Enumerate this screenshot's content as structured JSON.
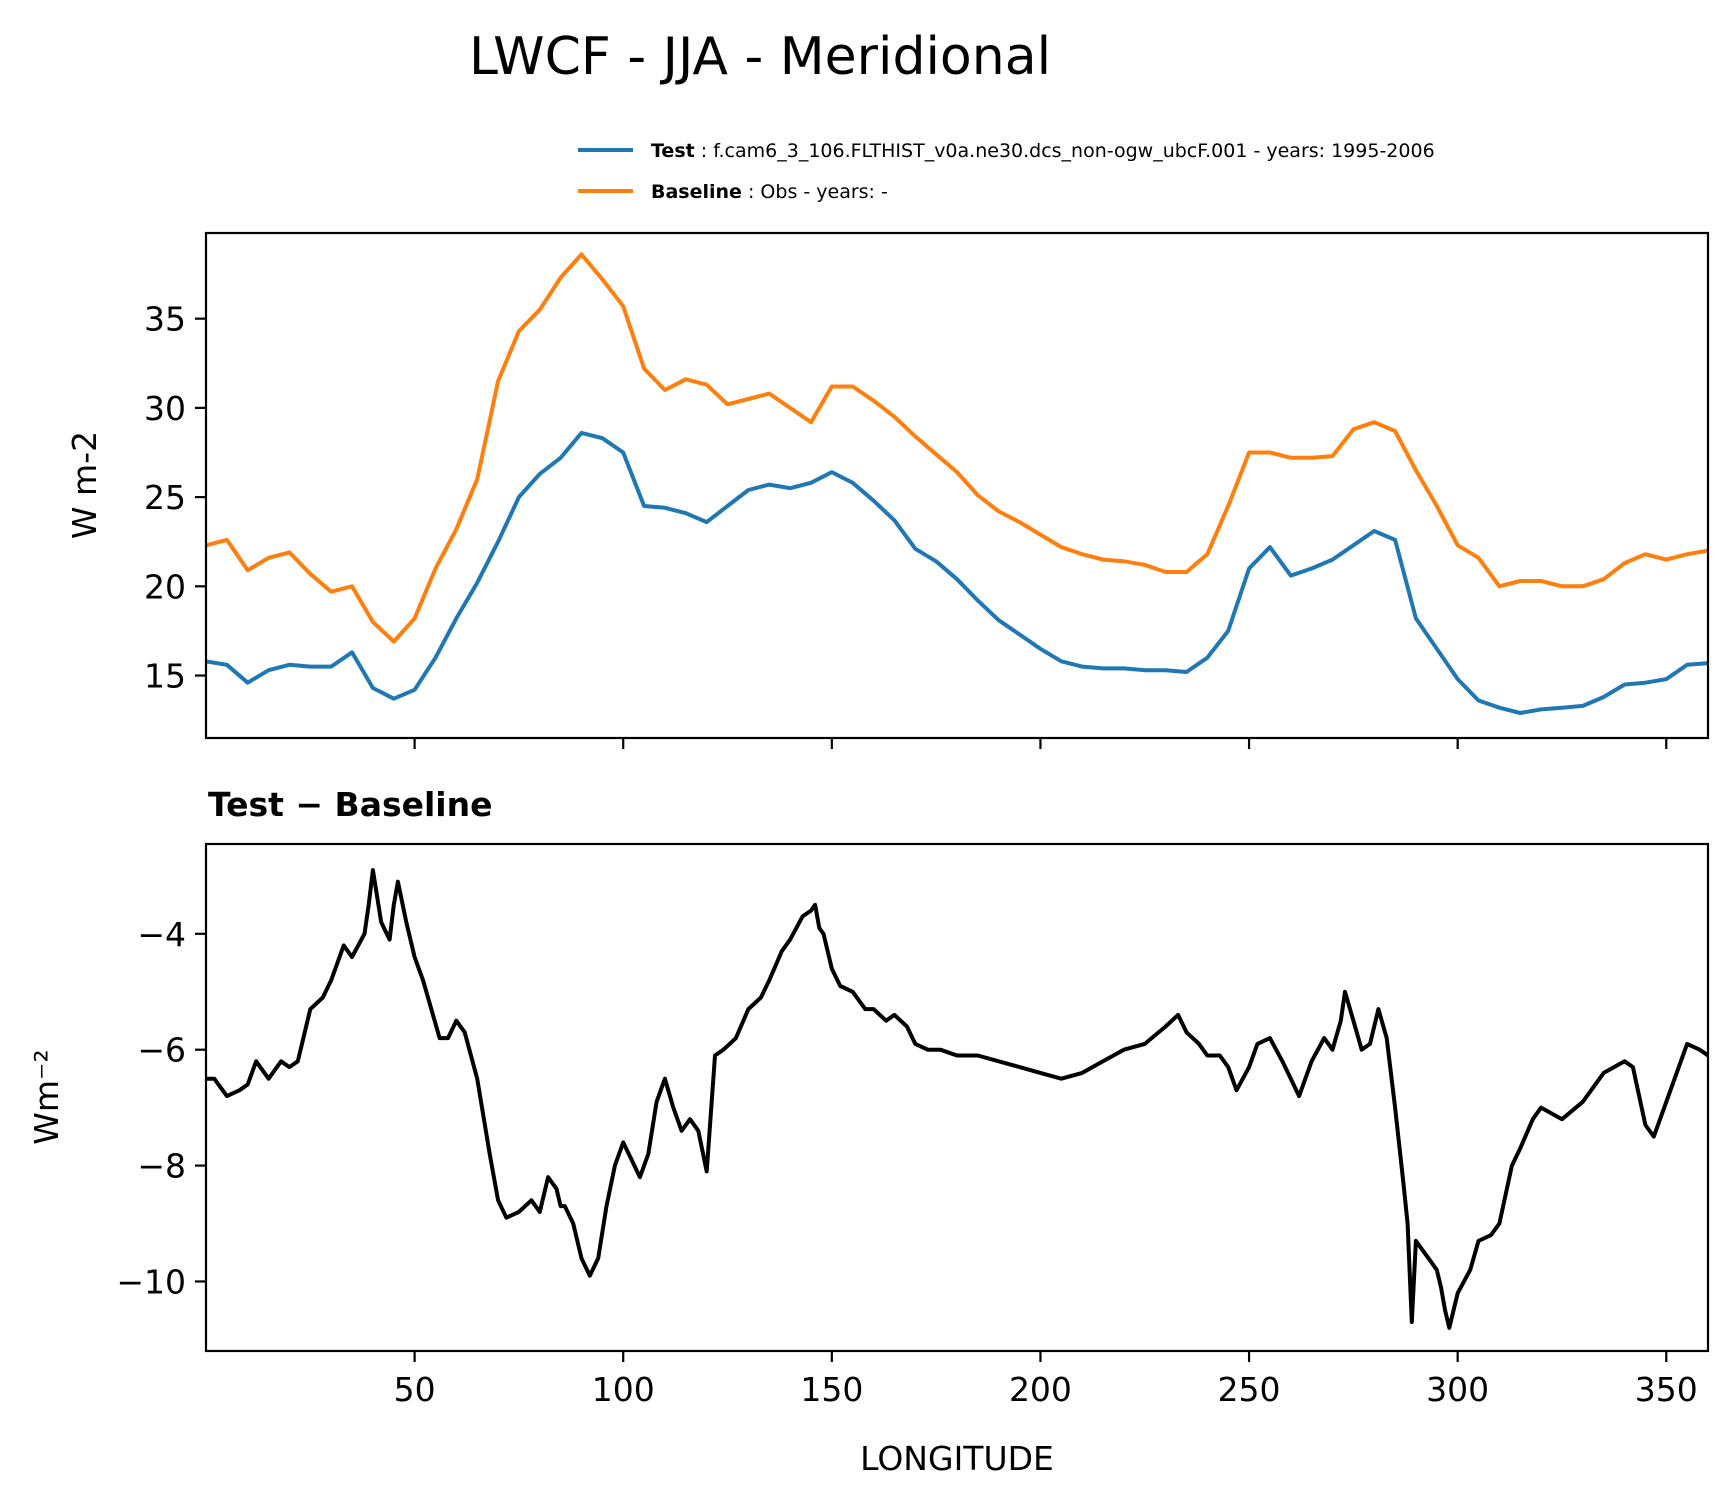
{
  "colors": {
    "test": "#1f77b4",
    "baseline": "#ff7f0e",
    "difference": "#000000"
  },
  "chart_data": [
    {
      "type": "line",
      "title": "LWCF - JJA - Meridional",
      "xlabel": "",
      "ylabel": "W m-2",
      "xlim": [
        0,
        360
      ],
      "ylim": [
        11.5,
        39.8
      ],
      "yticks": [
        15,
        20,
        25,
        30,
        35
      ],
      "ytick_labels": [
        "15",
        "20",
        "25",
        "30",
        "35"
      ],
      "xticks": [
        50,
        100,
        150,
        200,
        250,
        300,
        350
      ],
      "legend": [
        {
          "name": "Test",
          "text": ": f.cam6_3_106.FLTHIST_v0a.ne30.dcs_non-ogw_ubcF.001 - years: 1995-2006"
        },
        {
          "name": "Baseline",
          "text": ": Obs - years: -"
        }
      ],
      "legend_position": "above-right",
      "x": [
        0,
        5,
        10,
        15,
        20,
        25,
        30,
        35,
        40,
        45,
        50,
        55,
        60,
        65,
        70,
        75,
        80,
        85,
        90,
        95,
        100,
        105,
        110,
        115,
        120,
        125,
        130,
        135,
        140,
        145,
        150,
        155,
        160,
        165,
        170,
        175,
        180,
        185,
        190,
        195,
        200,
        205,
        210,
        215,
        220,
        225,
        230,
        235,
        240,
        245,
        250,
        255,
        260,
        265,
        270,
        275,
        280,
        285,
        290,
        295,
        300,
        305,
        310,
        315,
        320,
        325,
        330,
        335,
        340,
        345,
        350,
        355,
        360
      ],
      "series": [
        {
          "name": "Test",
          "values": [
            15.8,
            15.6,
            14.6,
            15.3,
            15.6,
            15.5,
            15.5,
            16.3,
            14.3,
            13.7,
            14.2,
            16.0,
            18.2,
            20.2,
            22.5,
            25.0,
            26.3,
            27.2,
            28.6,
            28.3,
            27.5,
            24.5,
            24.4,
            24.1,
            23.6,
            24.5,
            25.4,
            25.7,
            25.5,
            25.8,
            26.4,
            25.8,
            24.8,
            23.7,
            22.1,
            21.4,
            20.4,
            19.2,
            18.1,
            17.3,
            16.5,
            15.8,
            15.5,
            15.4,
            15.4,
            15.3,
            15.3,
            15.2,
            16.0,
            17.5,
            21.0,
            22.2,
            20.6,
            21.0,
            21.5,
            22.3,
            23.1,
            22.6,
            18.2,
            16.5,
            14.8,
            13.6,
            13.2,
            12.9,
            13.1,
            13.2,
            13.3,
            13.8,
            14.5,
            14.6,
            14.8,
            15.6,
            15.7
          ]
        },
        {
          "name": "Baseline",
          "values": [
            22.3,
            22.6,
            20.9,
            21.6,
            21.9,
            20.7,
            19.7,
            20.0,
            18.0,
            16.9,
            18.2,
            21.0,
            23.2,
            26.0,
            31.5,
            34.3,
            35.5,
            37.3,
            38.6,
            37.2,
            35.7,
            32.2,
            31.0,
            31.6,
            31.3,
            30.2,
            30.5,
            30.8,
            30.0,
            29.2,
            31.2,
            31.2,
            30.4,
            29.5,
            28.4,
            27.4,
            26.4,
            25.1,
            24.2,
            23.6,
            22.9,
            22.2,
            21.8,
            21.5,
            21.4,
            21.2,
            20.8,
            20.8,
            21.8,
            24.5,
            27.5,
            27.5,
            27.2,
            27.2,
            27.3,
            28.8,
            29.2,
            28.7,
            26.5,
            24.5,
            22.3,
            21.6,
            20.0,
            20.3,
            20.3,
            20.0,
            20.0,
            20.4,
            21.3,
            21.8,
            21.5,
            21.8,
            22.0
          ]
        }
      ]
    },
    {
      "type": "line",
      "title": "Test − Baseline",
      "xlabel": "LONGITUDE",
      "ylabel": "Wm⁻²",
      "xlim": [
        0,
        360
      ],
      "ylim": [
        -11.2,
        -2.45
      ],
      "yticks": [
        -10,
        -8,
        -6,
        -4
      ],
      "ytick_labels": [
        "−10",
        "−8",
        "−6",
        "−4"
      ],
      "xticks": [
        50,
        100,
        150,
        200,
        250,
        300,
        350
      ],
      "xtick_labels": [
        "50",
        "100",
        "150",
        "200",
        "250",
        "300",
        "350"
      ],
      "x": [
        0,
        2,
        5,
        8,
        10,
        12,
        15,
        18,
        20,
        22,
        25,
        28,
        30,
        33,
        35,
        38,
        39,
        40,
        42,
        44,
        45,
        46,
        48,
        50,
        52,
        54,
        56,
        58,
        60,
        62,
        65,
        68,
        70,
        72,
        75,
        78,
        80,
        82,
        84,
        85,
        86,
        88,
        90,
        92,
        94,
        96,
        98,
        100,
        102,
        104,
        106,
        108,
        110,
        112,
        114,
        116,
        118,
        120,
        122,
        124,
        127,
        130,
        133,
        135,
        138,
        140,
        143,
        145,
        146,
        147,
        148,
        150,
        152,
        155,
        158,
        160,
        163,
        165,
        168,
        170,
        173,
        176,
        180,
        185,
        190,
        195,
        200,
        205,
        210,
        215,
        220,
        225,
        230,
        233,
        235,
        238,
        240,
        243,
        245,
        247,
        250,
        252,
        255,
        258,
        260,
        262,
        265,
        268,
        270,
        272,
        273,
        275,
        277,
        279,
        281,
        283,
        285,
        287,
        288,
        289,
        290,
        293,
        295,
        296,
        297,
        298,
        300,
        303,
        305,
        308,
        310,
        313,
        315,
        318,
        320,
        325,
        330,
        335,
        340,
        342,
        345,
        347,
        350,
        353,
        355,
        358,
        360
      ],
      "series": [
        {
          "name": "Test − Baseline",
          "values": [
            -6.5,
            -6.5,
            -6.8,
            -6.7,
            -6.6,
            -6.2,
            -6.5,
            -6.2,
            -6.3,
            -6.2,
            -5.3,
            -5.1,
            -4.8,
            -4.2,
            -4.4,
            -4.0,
            -3.5,
            -2.9,
            -3.8,
            -4.1,
            -3.5,
            -3.1,
            -3.8,
            -4.4,
            -4.8,
            -5.3,
            -5.8,
            -5.8,
            -5.5,
            -5.7,
            -6.5,
            -7.8,
            -8.6,
            -8.9,
            -8.8,
            -8.6,
            -8.8,
            -8.2,
            -8.4,
            -8.7,
            -8.7,
            -9.0,
            -9.6,
            -9.9,
            -9.6,
            -8.7,
            -8.0,
            -7.6,
            -7.9,
            -8.2,
            -7.8,
            -6.9,
            -6.5,
            -7.0,
            -7.4,
            -7.2,
            -7.4,
            -8.1,
            -6.1,
            -6.0,
            -5.8,
            -5.3,
            -5.1,
            -4.8,
            -4.3,
            -4.1,
            -3.7,
            -3.6,
            -3.5,
            -3.9,
            -4.0,
            -4.6,
            -4.9,
            -5.0,
            -5.3,
            -5.3,
            -5.5,
            -5.4,
            -5.6,
            -5.9,
            -6.0,
            -6.0,
            -6.1,
            -6.1,
            -6.2,
            -6.3,
            -6.4,
            -6.5,
            -6.4,
            -6.2,
            -6.0,
            -5.9,
            -5.6,
            -5.4,
            -5.7,
            -5.9,
            -6.1,
            -6.1,
            -6.3,
            -6.7,
            -6.3,
            -5.9,
            -5.8,
            -6.2,
            -6.5,
            -6.8,
            -6.2,
            -5.8,
            -6.0,
            -5.5,
            -5.0,
            -5.5,
            -6.0,
            -5.9,
            -5.3,
            -5.8,
            -7.0,
            -8.3,
            -9.0,
            -10.7,
            -9.3,
            -9.6,
            -9.8,
            -10.1,
            -10.5,
            -10.8,
            -10.2,
            -9.8,
            -9.3,
            -9.2,
            -9.0,
            -8.0,
            -7.7,
            -7.2,
            -7.0,
            -7.2,
            -6.9,
            -6.4,
            -6.2,
            -6.3,
            -7.3,
            -7.5,
            -6.9,
            -6.3,
            -5.9,
            -6.0,
            -6.1
          ]
        }
      ]
    }
  ]
}
